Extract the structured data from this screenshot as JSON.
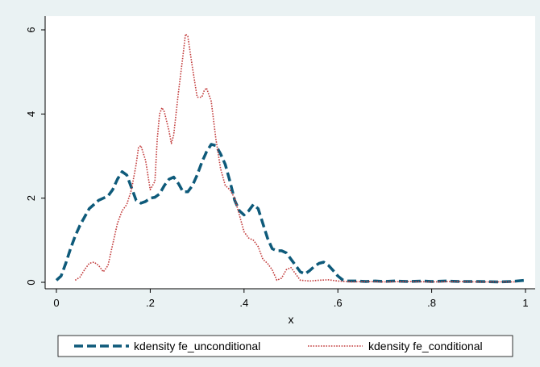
{
  "chart_data": {
    "type": "line",
    "title": "",
    "xlabel": "x",
    "ylabel": "",
    "xlim": [
      0,
      1
    ],
    "ylim": [
      0,
      6.2
    ],
    "xticks": [
      {
        "value": 0,
        "label": "0"
      },
      {
        "value": 0.2,
        "label": ".2"
      },
      {
        "value": 0.4,
        "label": ".4"
      },
      {
        "value": 0.6,
        "label": ".6"
      },
      {
        "value": 0.8,
        "label": ".8"
      },
      {
        "value": 1,
        "label": "1"
      }
    ],
    "yticks": [
      {
        "value": 0,
        "label": "0"
      },
      {
        "value": 2,
        "label": "2"
      },
      {
        "value": 4,
        "label": "4"
      },
      {
        "value": 6,
        "label": "6"
      }
    ],
    "grid": false,
    "legend_position": "bottom",
    "series": [
      {
        "name": "kdensity fe_unconditional",
        "color": "#0e5a7a",
        "style": "dashed",
        "points": [
          [
            0.0,
            0.05
          ],
          [
            0.01,
            0.15
          ],
          [
            0.02,
            0.45
          ],
          [
            0.03,
            0.8
          ],
          [
            0.04,
            1.1
          ],
          [
            0.05,
            1.35
          ],
          [
            0.06,
            1.55
          ],
          [
            0.07,
            1.75
          ],
          [
            0.08,
            1.85
          ],
          [
            0.09,
            1.95
          ],
          [
            0.1,
            2.0
          ],
          [
            0.11,
            2.05
          ],
          [
            0.12,
            2.2
          ],
          [
            0.13,
            2.45
          ],
          [
            0.14,
            2.63
          ],
          [
            0.15,
            2.55
          ],
          [
            0.16,
            2.25
          ],
          [
            0.17,
            1.95
          ],
          [
            0.18,
            1.88
          ],
          [
            0.19,
            1.92
          ],
          [
            0.2,
            2.0
          ],
          [
            0.21,
            2.02
          ],
          [
            0.22,
            2.1
          ],
          [
            0.23,
            2.3
          ],
          [
            0.24,
            2.45
          ],
          [
            0.25,
            2.5
          ],
          [
            0.26,
            2.35
          ],
          [
            0.27,
            2.15
          ],
          [
            0.28,
            2.15
          ],
          [
            0.29,
            2.3
          ],
          [
            0.3,
            2.55
          ],
          [
            0.31,
            2.85
          ],
          [
            0.32,
            3.1
          ],
          [
            0.33,
            3.28
          ],
          [
            0.34,
            3.25
          ],
          [
            0.35,
            3.05
          ],
          [
            0.36,
            2.8
          ],
          [
            0.37,
            2.4
          ],
          [
            0.38,
            1.95
          ],
          [
            0.39,
            1.7
          ],
          [
            0.4,
            1.6
          ],
          [
            0.41,
            1.7
          ],
          [
            0.42,
            1.85
          ],
          [
            0.43,
            1.75
          ],
          [
            0.44,
            1.4
          ],
          [
            0.45,
            1.05
          ],
          [
            0.46,
            0.8
          ],
          [
            0.47,
            0.75
          ],
          [
            0.48,
            0.75
          ],
          [
            0.49,
            0.7
          ],
          [
            0.5,
            0.55
          ],
          [
            0.51,
            0.4
          ],
          [
            0.52,
            0.25
          ],
          [
            0.53,
            0.2
          ],
          [
            0.54,
            0.28
          ],
          [
            0.55,
            0.38
          ],
          [
            0.56,
            0.45
          ],
          [
            0.57,
            0.48
          ],
          [
            0.58,
            0.4
          ],
          [
            0.59,
            0.28
          ],
          [
            0.6,
            0.15
          ],
          [
            0.61,
            0.06
          ],
          [
            0.62,
            0.03
          ],
          [
            0.64,
            0.03
          ],
          [
            0.66,
            0.02
          ],
          [
            0.68,
            0.03
          ],
          [
            0.7,
            0.02
          ],
          [
            0.72,
            0.03
          ],
          [
            0.75,
            0.02
          ],
          [
            0.78,
            0.03
          ],
          [
            0.8,
            0.02
          ],
          [
            0.83,
            0.03
          ],
          [
            0.86,
            0.02
          ],
          [
            0.9,
            0.02
          ],
          [
            0.94,
            0.01
          ],
          [
            0.97,
            0.02
          ],
          [
            1.0,
            0.05
          ]
        ]
      },
      {
        "name": "kdensity fe_conditional",
        "color": "#c23b3b",
        "style": "dotted",
        "points": [
          [
            0.04,
            0.05
          ],
          [
            0.05,
            0.12
          ],
          [
            0.06,
            0.3
          ],
          [
            0.07,
            0.45
          ],
          [
            0.08,
            0.48
          ],
          [
            0.09,
            0.4
          ],
          [
            0.1,
            0.25
          ],
          [
            0.11,
            0.4
          ],
          [
            0.12,
            0.9
          ],
          [
            0.13,
            1.4
          ],
          [
            0.14,
            1.7
          ],
          [
            0.15,
            1.85
          ],
          [
            0.16,
            2.2
          ],
          [
            0.17,
            2.8
          ],
          [
            0.175,
            3.2
          ],
          [
            0.18,
            3.25
          ],
          [
            0.19,
            2.9
          ],
          [
            0.2,
            2.2
          ],
          [
            0.21,
            2.4
          ],
          [
            0.215,
            3.4
          ],
          [
            0.22,
            4.0
          ],
          [
            0.225,
            4.15
          ],
          [
            0.23,
            4.05
          ],
          [
            0.24,
            3.6
          ],
          [
            0.245,
            3.3
          ],
          [
            0.25,
            3.5
          ],
          [
            0.26,
            4.5
          ],
          [
            0.27,
            5.4
          ],
          [
            0.275,
            5.9
          ],
          [
            0.28,
            5.85
          ],
          [
            0.29,
            5.1
          ],
          [
            0.3,
            4.4
          ],
          [
            0.31,
            4.4
          ],
          [
            0.315,
            4.55
          ],
          [
            0.32,
            4.62
          ],
          [
            0.33,
            4.3
          ],
          [
            0.34,
            3.4
          ],
          [
            0.35,
            2.7
          ],
          [
            0.36,
            2.3
          ],
          [
            0.37,
            2.2
          ],
          [
            0.38,
            2.0
          ],
          [
            0.39,
            1.6
          ],
          [
            0.4,
            1.2
          ],
          [
            0.41,
            1.05
          ],
          [
            0.42,
            1.0
          ],
          [
            0.43,
            0.85
          ],
          [
            0.44,
            0.55
          ],
          [
            0.45,
            0.45
          ],
          [
            0.46,
            0.3
          ],
          [
            0.47,
            0.05
          ],
          [
            0.48,
            0.1
          ],
          [
            0.49,
            0.3
          ],
          [
            0.5,
            0.35
          ],
          [
            0.51,
            0.2
          ],
          [
            0.52,
            0.05
          ],
          [
            0.54,
            0.03
          ],
          [
            0.56,
            0.05
          ],
          [
            0.58,
            0.06
          ],
          [
            0.6,
            0.03
          ],
          [
            0.63,
            0.01
          ],
          [
            0.66,
            0.02
          ],
          [
            0.7,
            0.01
          ],
          [
            0.75,
            0.02
          ],
          [
            0.8,
            0.01
          ],
          [
            0.85,
            0.02
          ],
          [
            0.9,
            0.01
          ],
          [
            0.95,
            0.01
          ],
          [
            0.98,
            0.01
          ]
        ]
      }
    ]
  }
}
